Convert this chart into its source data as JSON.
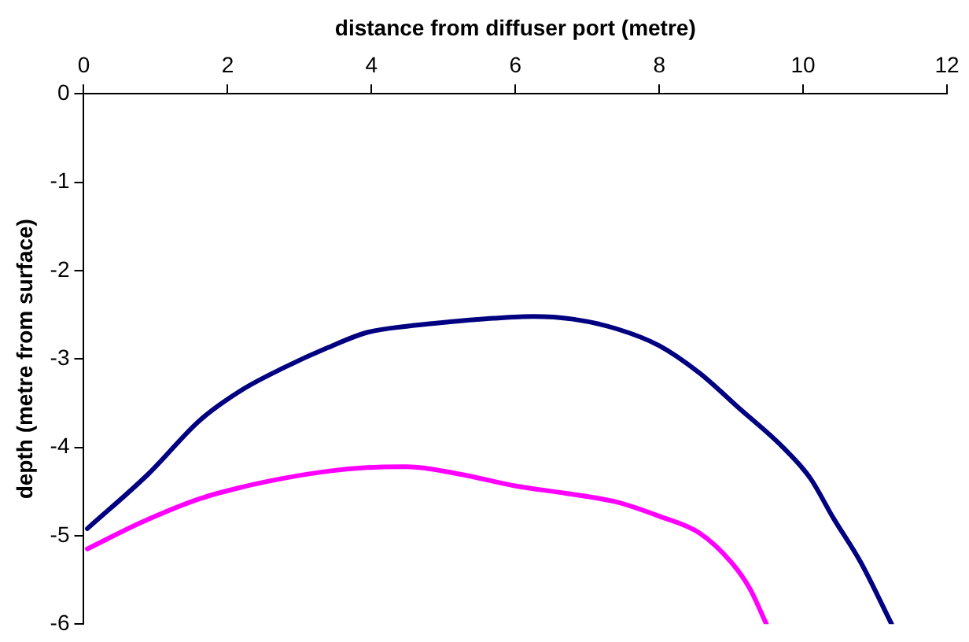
{
  "chart_data": {
    "type": "line",
    "xlabel": "distance from diffuser port (metre)",
    "ylabel": "depth (metre from surface)",
    "xlim": [
      0,
      12
    ],
    "xticks": [
      0,
      2,
      4,
      6,
      8,
      10,
      12
    ],
    "ylim": [
      -6,
      0
    ],
    "yticks": [
      0,
      -1,
      -2,
      -3,
      -4,
      -5,
      -6
    ],
    "grid": false,
    "marker": "none",
    "line_style": "solid",
    "series": [
      {
        "color": "#000080",
        "x": [
          0.05,
          0.9,
          1.62,
          2.2,
          2.78,
          3.4,
          3.94,
          4.6,
          5.09,
          5.7,
          6.25,
          6.8,
          7.41,
          8.0,
          8.56,
          9.1,
          9.72,
          10.1,
          10.42,
          10.8,
          11.23
        ],
        "values": [
          -4.92,
          -4.3,
          -3.69,
          -3.35,
          -3.1,
          -2.87,
          -2.7,
          -2.62,
          -2.58,
          -2.54,
          -2.52,
          -2.55,
          -2.66,
          -2.85,
          -3.16,
          -3.55,
          -4.0,
          -4.35,
          -4.8,
          -5.3,
          -6
        ]
      },
      {
        "color": "#ff00ff",
        "x": [
          0.05,
          0.8,
          1.62,
          2.2,
          2.78,
          3.4,
          3.94,
          4.5,
          5.2,
          6.02,
          6.7,
          7.41,
          8.0,
          8.56,
          9.0,
          9.26,
          9.49
        ],
        "values": [
          -5.15,
          -4.85,
          -4.58,
          -4.45,
          -4.35,
          -4.27,
          -4.23,
          -4.22,
          -4.3,
          -4.44,
          -4.52,
          -4.62,
          -4.78,
          -4.97,
          -5.3,
          -5.6,
          -6
        ]
      }
    ]
  }
}
